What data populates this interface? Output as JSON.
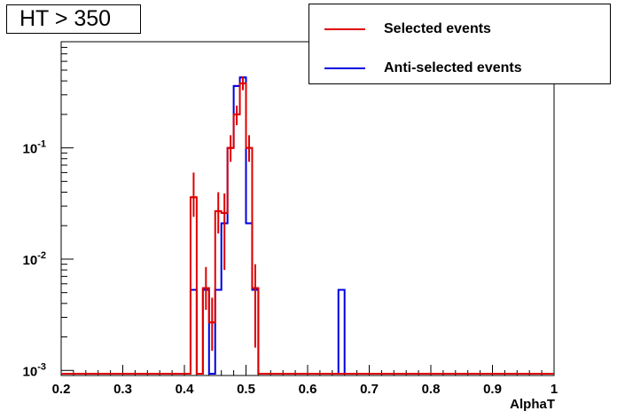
{
  "title": "HT > 350",
  "legend": {
    "selected": "Selected events",
    "antiselected": "Anti-selected events"
  },
  "colors": {
    "selected": "#e00000",
    "antiselected": "#0000e0"
  },
  "chart_data": {
    "type": "step-histogram",
    "title": "HT > 350",
    "xlabel": "AlphaT",
    "ylabel": "",
    "xlim": [
      0.2,
      1.0
    ],
    "ylim": [
      0.0009,
      0.9
    ],
    "yscale": "log",
    "grid": false,
    "legend_position": "top-right",
    "bin_width": 0.01,
    "x_ticks": [
      "0.2",
      "0.3",
      "0.4",
      "0.5",
      "0.6",
      "0.7",
      "0.8",
      "0.9",
      "1"
    ],
    "y_ticks": [
      {
        "value": 0.001,
        "base": "10",
        "exp": "-3"
      },
      {
        "value": 0.01,
        "base": "10",
        "exp": "-2"
      },
      {
        "value": 0.1,
        "base": "10",
        "exp": "-1"
      }
    ],
    "series": [
      {
        "name": "Selected events",
        "bins": [
          {
            "x": 0.41,
            "y": 0.036,
            "err": [
              0.024,
              0.06
            ]
          },
          {
            "x": 0.43,
            "y": 0.0055,
            "err": [
              0.0035,
              0.0085
            ]
          },
          {
            "x": 0.44,
            "y": 0.0027,
            "err": [
              0.0015,
              0.0045
            ]
          },
          {
            "x": 0.45,
            "y": 0.027,
            "err": [
              0.017,
              0.04
            ]
          },
          {
            "x": 0.46,
            "y": 0.026,
            "err": [
              0.008,
              0.039
            ]
          },
          {
            "x": 0.47,
            "y": 0.1,
            "err": [
              0.075,
              0.13
            ]
          },
          {
            "x": 0.48,
            "y": 0.2,
            "err": [
              0.16,
              0.24
            ]
          },
          {
            "x": 0.49,
            "y": 0.38,
            "err": [
              0.33,
              0.44
            ]
          },
          {
            "x": 0.5,
            "y": 0.1,
            "err": [
              0.075,
              0.13
            ]
          },
          {
            "x": 0.51,
            "y": 0.0055,
            "err": [
              0.0016,
              0.009
            ]
          }
        ]
      },
      {
        "name": "Anti-selected events",
        "bins": [
          {
            "x": 0.41,
            "y": 0.0053
          },
          {
            "x": 0.43,
            "y": 0.0053
          },
          {
            "x": 0.45,
            "y": 0.0053
          },
          {
            "x": 0.46,
            "y": 0.021
          },
          {
            "x": 0.47,
            "y": 0.1
          },
          {
            "x": 0.48,
            "y": 0.36
          },
          {
            "x": 0.49,
            "y": 0.43
          },
          {
            "x": 0.5,
            "y": 0.021
          },
          {
            "x": 0.51,
            "y": 0.0053
          },
          {
            "x": 0.65,
            "y": 0.0053
          }
        ]
      }
    ]
  }
}
